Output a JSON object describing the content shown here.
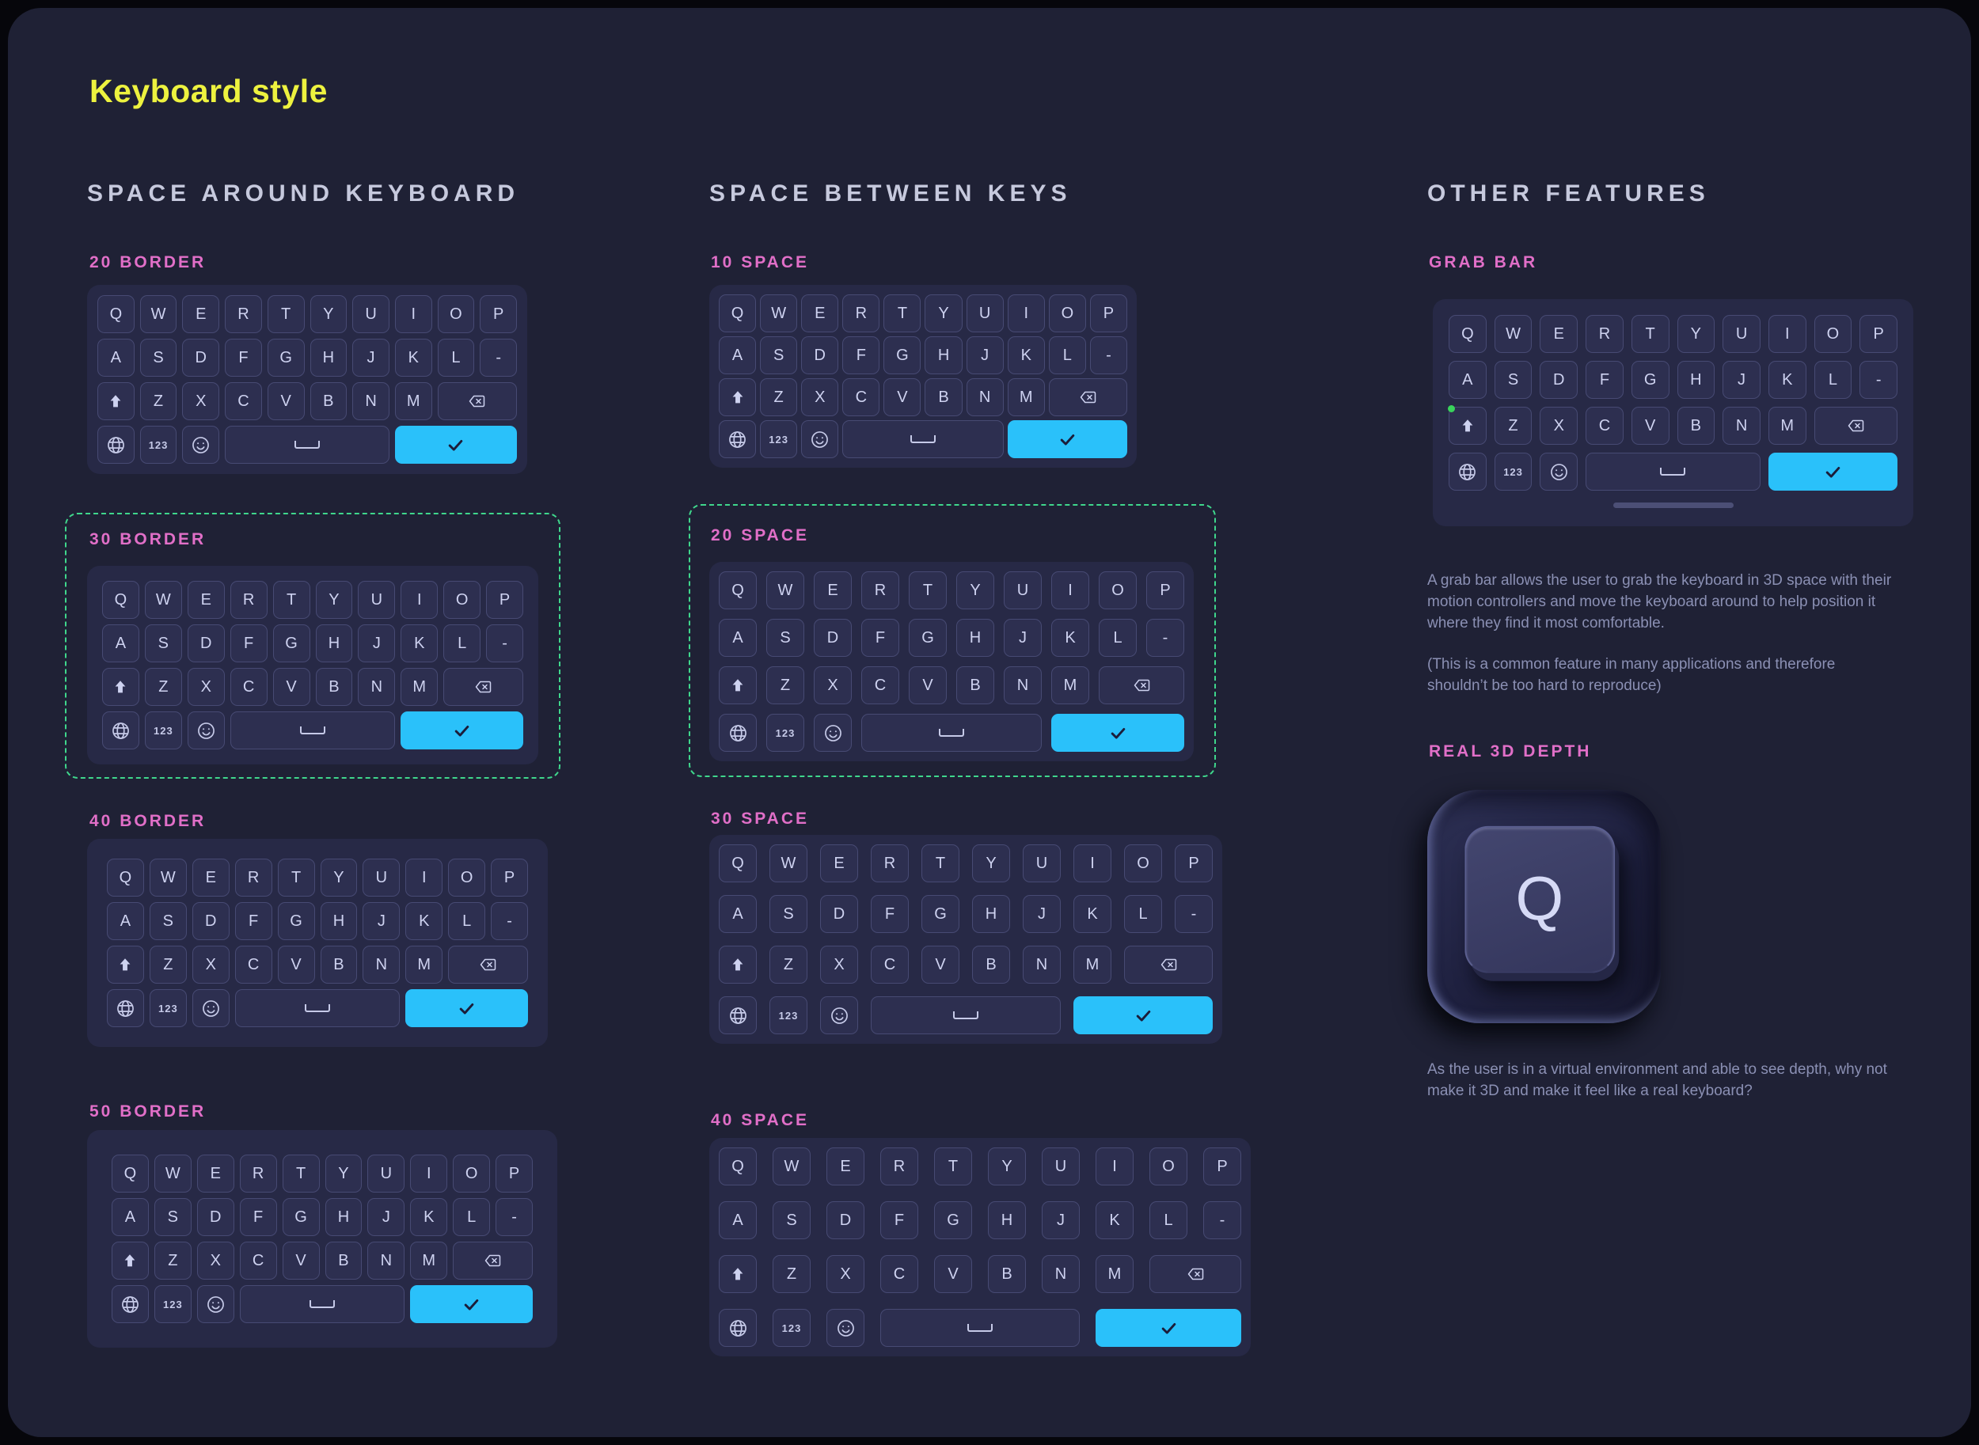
{
  "title": "Keyboard style",
  "columns": [
    {
      "header": "SPACE AROUND KEYBOARD",
      "sections": [
        {
          "label": "20 BORDER",
          "highlighted": false
        },
        {
          "label": "30 BORDER",
          "highlighted": true
        },
        {
          "label": "40 BORDER",
          "highlighted": false
        },
        {
          "label": "50 BORDER",
          "highlighted": false
        }
      ]
    },
    {
      "header": "SPACE BETWEEN KEYS",
      "sections": [
        {
          "label": "10 SPACE",
          "highlighted": false
        },
        {
          "label": "20 SPACE",
          "highlighted": true
        },
        {
          "label": "30 SPACE",
          "highlighted": false
        },
        {
          "label": "40 SPACE",
          "highlighted": false
        }
      ]
    },
    {
      "header": "OTHER FEATURES",
      "sections": [
        {
          "label": "GRAB BAR"
        },
        {
          "label": "REAL 3D DEPTH"
        }
      ]
    }
  ],
  "keyboard_layout": {
    "row1": [
      "Q",
      "W",
      "E",
      "R",
      "T",
      "Y",
      "U",
      "I",
      "O",
      "P"
    ],
    "row2": [
      "A",
      "S",
      "D",
      "F",
      "G",
      "H",
      "J",
      "K",
      "L",
      "-"
    ],
    "row3": [
      "Z",
      "X",
      "C",
      "V",
      "B",
      "N",
      "M"
    ],
    "icons": {
      "shift": "filled-up-arrow",
      "backspace": "⌫",
      "globe": "globe-grid",
      "numbers_label": "123",
      "emoji": "smiley-face",
      "space": "⎵",
      "enter": "✓"
    }
  },
  "grab_bar": {
    "paragraph1": "A grab bar allows the user to grab the keyboard in 3D space with their motion controllers and move the keyboard around to help position it where they find it most comfortable.",
    "paragraph2": "(This is a common feature in many applications and therefore shouldn’t be too hard to reproduce)"
  },
  "real_3d_depth": {
    "key_letter": "Q",
    "paragraph": "As the user is in a virtual environment and able to see depth, why not make it 3D and make it feel like a real keyboard?"
  },
  "colors": {
    "outer_background": "#06060b",
    "page_background": "#1f2135",
    "panel": "#272946",
    "key": "#2d2f50",
    "key_border": "#474a73",
    "key_text": "#ced2f0",
    "enter_blue": "#2ac1fa",
    "accent_pink": "#e16fc8",
    "accent_yellow": "#edf23f",
    "highlight_green": "#3fd78c",
    "header_text": "#c6c9dd",
    "body_text": "#8b90b4",
    "grab_bar": "#4c4f76",
    "grab_dot_green": "#39d35b"
  }
}
